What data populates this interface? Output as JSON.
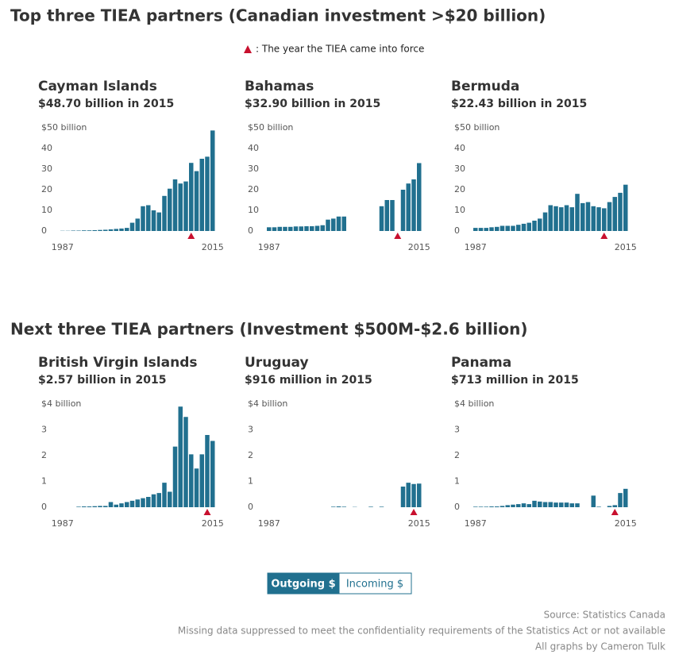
{
  "headings": [
    "Top three TIEA partners (Canadian investment >$20 billion)",
    "Next three TIEA partners (Investment $500M-$2.6 billion)"
  ],
  "legend": ": The year the TIEA came into force",
  "buttons": [
    "Outgoing $",
    "Incoming $"
  ],
  "footer": [
    "Source: Statistics Canada",
    "Missing data suppressed to meet the confidentiality requirements of the Statistics Act or not available",
    "All graphs by Cameron Tulk"
  ],
  "chart_data": [
    {
      "type": "bar",
      "title": "Cayman Islands",
      "subtitle": "$48.70 billion in 2015",
      "color": "#21708f",
      "marker_color": "#c8102e",
      "categories": [
        1987,
        null,
        null,
        null,
        null,
        null,
        null,
        null,
        null,
        null,
        null,
        null,
        null,
        null,
        null,
        null,
        null,
        null,
        null,
        null,
        null,
        null,
        null,
        null,
        null,
        null,
        null,
        null,
        2015
      ],
      "values": [
        0.1,
        0.1,
        0.2,
        0.2,
        0.3,
        0.3,
        0.4,
        0.5,
        0.6,
        0.8,
        1.0,
        1.2,
        1.5,
        4,
        6,
        12,
        12.5,
        10,
        9,
        17,
        20.5,
        25,
        23,
        24,
        33,
        29,
        35,
        36,
        48.7
      ],
      "tiea_year": 2011,
      "ylim": [
        0,
        50
      ],
      "yticks": [
        0,
        10,
        20,
        30,
        40,
        {
          "value": 50,
          "label": "$50 billion"
        }
      ]
    },
    {
      "type": "bar",
      "title": "Bahamas",
      "subtitle": "$32.90 billion in 2015",
      "color": "#21708f",
      "marker_color": "#c8102e",
      "categories": [
        1987,
        null,
        null,
        null,
        null,
        null,
        null,
        null,
        null,
        null,
        null,
        null,
        null,
        null,
        null,
        null,
        null,
        null,
        null,
        null,
        null,
        null,
        null,
        null,
        null,
        null,
        null,
        null,
        2015
      ],
      "values": [
        1.8,
        1.8,
        2,
        2,
        2,
        2.2,
        2.2,
        2.3,
        2.3,
        2.5,
        2.8,
        5.5,
        6,
        7,
        7,
        null,
        null,
        null,
        null,
        null,
        null,
        12,
        15,
        15,
        null,
        20,
        23,
        25,
        32.9
      ],
      "tiea_year": 2011,
      "ylim": [
        0,
        50
      ],
      "yticks": [
        0,
        10,
        20,
        30,
        40,
        {
          "value": 50,
          "label": "$50 billion"
        }
      ]
    },
    {
      "type": "bar",
      "title": "Bermuda",
      "subtitle": "$22.43 billion in 2015",
      "color": "#21708f",
      "marker_color": "#c8102e",
      "categories": [
        1987,
        null,
        null,
        null,
        null,
        null,
        null,
        null,
        null,
        null,
        null,
        null,
        null,
        null,
        null,
        null,
        null,
        null,
        null,
        null,
        null,
        null,
        null,
        null,
        null,
        null,
        null,
        null,
        2015
      ],
      "values": [
        1.5,
        1.5,
        1.5,
        1.8,
        2,
        2.5,
        2.5,
        2.5,
        3,
        3.5,
        4,
        5,
        6,
        9,
        12.5,
        12,
        11.5,
        12.5,
        11.5,
        18,
        13.5,
        14,
        12,
        11.5,
        11,
        14,
        16.5,
        18.5,
        22.43
      ],
      "tiea_year": 2011,
      "ylim": [
        0,
        50
      ],
      "yticks": [
        0,
        10,
        20,
        30,
        40,
        {
          "value": 50,
          "label": "$50 billion"
        }
      ]
    },
    {
      "type": "bar",
      "title": "British Virgin Islands",
      "subtitle": "$2.57 billion in 2015",
      "color": "#21708f",
      "marker_color": "#c8102e",
      "categories": [
        1987,
        null,
        null,
        null,
        null,
        null,
        null,
        null,
        null,
        null,
        null,
        null,
        null,
        null,
        null,
        null,
        null,
        null,
        null,
        null,
        null,
        null,
        null,
        null,
        null,
        null,
        null,
        null,
        2015
      ],
      "values": [
        0,
        0,
        0,
        0.02,
        0.03,
        0.03,
        0.04,
        0.05,
        0.05,
        0.2,
        0.1,
        0.15,
        0.2,
        0.25,
        0.3,
        0.35,
        0.4,
        0.5,
        0.55,
        0.95,
        0.6,
        2.35,
        3.9,
        3.5,
        2.05,
        1.5,
        2.05,
        2.8,
        2.57
      ],
      "tiea_year": 2014,
      "ylim": [
        0,
        4
      ],
      "yticks": [
        0,
        1,
        2,
        3,
        {
          "value": 4,
          "label": "$4 billion"
        }
      ]
    },
    {
      "type": "bar",
      "title": "Uruguay",
      "subtitle": "$916 million in 2015",
      "color": "#21708f",
      "marker_color": "#c8102e",
      "categories": [
        1987,
        null,
        null,
        null,
        null,
        null,
        null,
        null,
        null,
        null,
        null,
        null,
        null,
        null,
        null,
        null,
        null,
        null,
        null,
        null,
        null,
        null,
        null,
        null,
        null,
        null,
        null,
        null,
        2015
      ],
      "values": [
        null,
        null,
        null,
        null,
        null,
        null,
        null,
        null,
        null,
        null,
        null,
        null,
        0.02,
        0.03,
        0.02,
        null,
        0.01,
        null,
        null,
        0.02,
        null,
        0.02,
        null,
        null,
        null,
        0.8,
        0.95,
        0.9,
        0.916
      ],
      "tiea_year": 2014,
      "ylim": [
        0,
        4
      ],
      "yticks": [
        0,
        1,
        2,
        3,
        {
          "value": 4,
          "label": "$4 billion"
        }
      ]
    },
    {
      "type": "bar",
      "title": "Panama",
      "subtitle": "$713 million in 2015",
      "color": "#21708f",
      "marker_color": "#c8102e",
      "categories": [
        1987,
        null,
        null,
        null,
        null,
        null,
        null,
        null,
        null,
        null,
        null,
        null,
        null,
        null,
        null,
        null,
        null,
        null,
        null,
        null,
        null,
        null,
        null,
        null,
        null,
        null,
        null,
        null,
        2015
      ],
      "values": [
        0.02,
        0.02,
        0.02,
        0.03,
        0.03,
        0.05,
        0.08,
        0.1,
        0.12,
        0.15,
        0.12,
        0.25,
        0.22,
        0.2,
        0.2,
        0.18,
        0.18,
        0.18,
        0.15,
        0.15,
        null,
        null,
        0.45,
        0.02,
        null,
        0.05,
        0.08,
        0.55,
        0.713
      ],
      "tiea_year": 2013,
      "ylim": [
        0,
        4
      ],
      "yticks": [
        0,
        1,
        2,
        3,
        {
          "value": 4,
          "label": "$4 billion"
        }
      ]
    }
  ]
}
